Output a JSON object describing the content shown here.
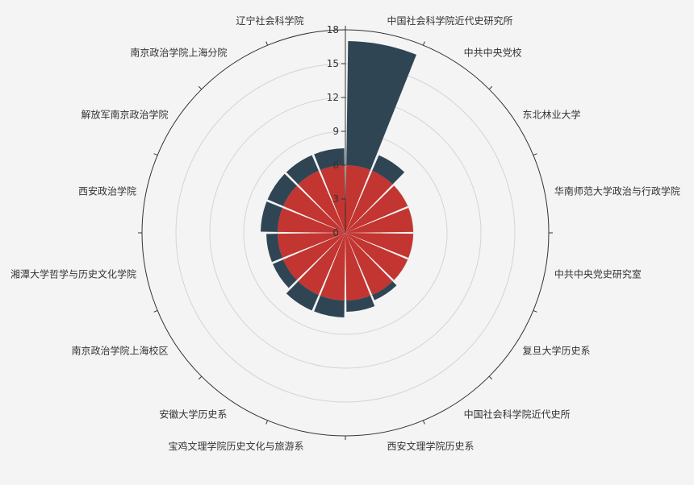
{
  "chart_data": {
    "type": "polar-bar",
    "categories": [
      "中国社会科学院近代史研究所",
      "中共中央党校",
      "东北林业大学",
      "华南师范大学政治与行政学院",
      "中共中央党史研究室",
      "复旦大学历史系",
      "中国社会科学院近代史所",
      "西安文理学院历史系",
      "宝鸡文理学院历史文化与旅游系",
      "安徽大学历史系",
      "南京政治学院上海校区",
      "湘潭大学哲学与历史文化学院",
      "西安政治学院",
      "解放军南京政治学院",
      "南京政治学院上海分院",
      "辽宁社会科学院"
    ],
    "series": [
      {
        "values": [
          6,
          6,
          6,
          6,
          6,
          6,
          6,
          6,
          6,
          6,
          6,
          6,
          6,
          6,
          6,
          6
        ]
      },
      {
        "values": [
          11,
          1.5,
          0,
          0,
          0,
          0,
          0.5,
          1,
          1.5,
          1.5,
          1,
          1,
          1.5,
          1.5,
          1.5,
          1.5
        ]
      }
    ],
    "radius_axis": {
      "min": 0,
      "max": 18,
      "ticks": [
        3,
        6,
        9,
        12,
        15,
        18
      ]
    },
    "colors": [
      "#c23531",
      "#2f4554"
    ],
    "grid": true
  }
}
